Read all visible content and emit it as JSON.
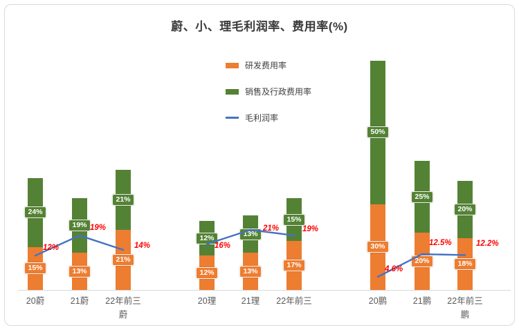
{
  "chart_data": {
    "type": "bar",
    "subtype": "stacked-bar-with-line",
    "title": "蔚、小、理毛利润率、费用率(%)",
    "categories": [
      "20蔚",
      "21蔚",
      "22年前三\n蔚",
      "20理",
      "21理",
      "22年前三",
      "20鹏",
      "21鹏",
      "22年前三\n鹏"
    ],
    "groups": [
      [
        0,
        1,
        2
      ],
      [
        3,
        4,
        5
      ],
      [
        6,
        7,
        8
      ]
    ],
    "stacked": true,
    "ylim": [
      0,
      82
    ],
    "grid": false,
    "legend_position": "top-center-vertical",
    "value_label_color": "#ffffff",
    "line_label_color": "#ff0000",
    "series": [
      {
        "name": "研发费用率",
        "type": "bar",
        "color": "#ED7D31",
        "values": [
          15,
          13,
          21,
          12,
          13,
          17,
          30,
          20,
          18
        ],
        "labels": [
          "15%",
          "13%",
          "21%",
          "12%",
          "13%",
          "17%",
          "30%",
          "20%",
          "18%"
        ]
      },
      {
        "name": "销售及行政费用率",
        "type": "bar",
        "color": "#548235",
        "values": [
          24,
          19,
          21,
          12,
          13,
          15,
          50,
          25,
          20
        ],
        "labels": [
          "24%",
          "19%",
          "21%",
          "12%",
          "13%",
          "15%",
          "50%",
          "25%",
          "20%"
        ]
      },
      {
        "name": "毛利润率",
        "type": "line",
        "color": "#4472C4",
        "values": [
          12,
          19,
          14,
          16,
          21,
          19,
          4.6,
          12.5,
          12.2
        ],
        "labels": [
          "12%",
          "19%",
          "14%",
          "16%",
          "21%",
          "19%",
          "4.6%",
          "12.5%",
          "12.2%"
        ]
      }
    ]
  }
}
